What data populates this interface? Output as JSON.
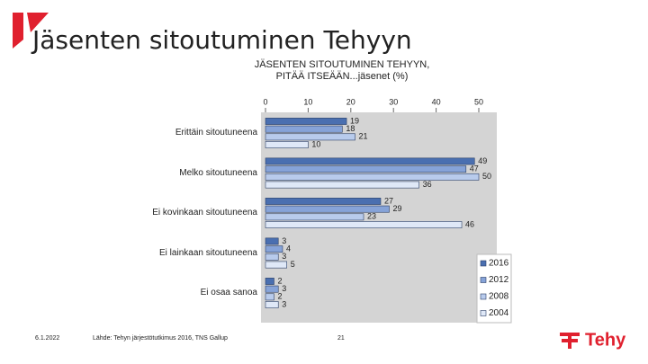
{
  "slide_title": "Jäsenten sitoutuminen Tehyyn",
  "footer": {
    "date": "6.1.2022",
    "source": "Lähde: Tehyn järjestötutkimus 2016, TNS Gallup",
    "page": "21"
  },
  "logo": "Tehy",
  "chart_data": {
    "type": "bar",
    "orientation": "horizontal",
    "title": "JÄSENTEN SITOUTUMINEN TEHYYN, PITÄÄ ITSEÄÄN...jäsenet (%)",
    "categories": [
      "Erittäin sitoutuneena",
      "Melko sitoutuneena",
      "Ei kovinkaan sitoutuneena",
      "Ei lainkaan sitoutuneena",
      "Ei osaa sanoa"
    ],
    "series": [
      {
        "name": "2016",
        "color": "#4a6fb0",
        "values": [
          19,
          49,
          27,
          3,
          2
        ]
      },
      {
        "name": "2012",
        "color": "#86a3d8",
        "values": [
          18,
          47,
          29,
          4,
          3
        ]
      },
      {
        "name": "2008",
        "color": "#b8cbec",
        "values": [
          21,
          50,
          23,
          3,
          2
        ]
      },
      {
        "name": "2004",
        "color": "#dfe8f7",
        "values": [
          10,
          36,
          46,
          5,
          3
        ]
      }
    ],
    "xlim": [
      0,
      50
    ],
    "xticks": [
      0,
      10,
      20,
      30,
      40,
      50
    ],
    "legend": "bottom-right"
  }
}
